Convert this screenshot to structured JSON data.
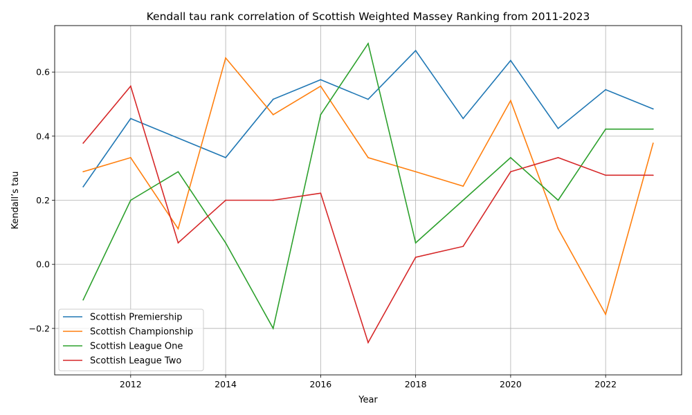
{
  "chart_data": {
    "type": "line",
    "title": "Kendall tau rank correlation of Scottish Weighted Massey Ranking from 2011-2023",
    "xlabel": "Year",
    "ylabel": "Kendall’s tau",
    "x": [
      2011,
      2012,
      2013,
      2014,
      2015,
      2016,
      2017,
      2018,
      2019,
      2020,
      2021,
      2022,
      2023
    ],
    "xlim": [
      2010.4,
      2023.6
    ],
    "ylim": [
      -0.345,
      0.745
    ],
    "xticks": [
      "2012",
      "2014",
      "2016",
      "2018",
      "2020",
      "2022"
    ],
    "yticks": [
      "−0.2",
      "0.0",
      "0.2",
      "0.4",
      "0.6"
    ],
    "grid": true,
    "legend_position": "lower-left",
    "series": [
      {
        "name": "Scottish Premiership",
        "color": "#1f77b4",
        "values": [
          0.242,
          0.455,
          0.394,
          0.333,
          0.515,
          0.576,
          0.515,
          0.667,
          0.455,
          0.636,
          0.424,
          0.545,
          0.485
        ]
      },
      {
        "name": "Scottish Championship",
        "color": "#ff7f0e",
        "values": [
          0.289,
          0.333,
          0.111,
          0.644,
          0.467,
          0.556,
          0.333,
          0.289,
          0.244,
          0.511,
          0.111,
          -0.156,
          0.378
        ]
      },
      {
        "name": "Scottish League One",
        "color": "#2ca02c",
        "values": [
          -0.111,
          0.2,
          0.289,
          0.067,
          -0.2,
          0.467,
          0.689,
          0.067,
          0.2,
          0.333,
          0.2,
          0.422,
          0.422
        ]
      },
      {
        "name": "Scottish League Two",
        "color": "#d62728",
        "values": [
          0.378,
          0.556,
          0.067,
          0.2,
          0.2,
          0.222,
          -0.244,
          0.022,
          0.056,
          0.289,
          0.333,
          0.278,
          0.278
        ]
      }
    ]
  }
}
